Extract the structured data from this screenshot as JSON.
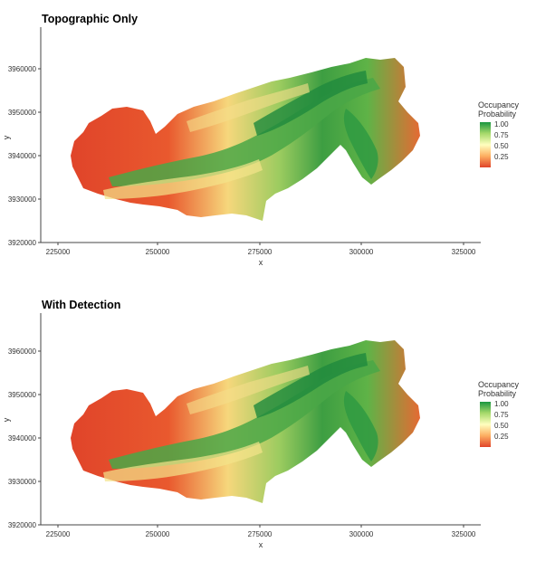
{
  "panels": [
    {
      "title": "Topographic Only",
      "x_axis": {
        "label": "x",
        "ticks": [
          "225000",
          "250000",
          "275000",
          "300000",
          "325000"
        ]
      },
      "y_axis": {
        "label": "y",
        "ticks": [
          "3920000",
          "3930000",
          "3940000",
          "3950000",
          "3960000"
        ]
      },
      "legend": {
        "title_line1": "Occupancy",
        "title_line2": "Probability",
        "ticks": [
          "1.00",
          "0.75",
          "0.50",
          "0.25"
        ]
      }
    },
    {
      "title": "With Detection",
      "x_axis": {
        "label": "x",
        "ticks": [
          "225000",
          "250000",
          "275000",
          "300000",
          "325000"
        ]
      },
      "y_axis": {
        "label": "y",
        "ticks": [
          "3920000",
          "3930000",
          "3940000",
          "3950000",
          "3960000"
        ]
      },
      "legend": {
        "title_line1": "Occupancy",
        "title_line2": "Probability",
        "ticks": [
          "1.00",
          "0.75",
          "0.50",
          "0.25"
        ]
      }
    }
  ],
  "colors": {
    "high": "#1a9641",
    "mid_high": "#a6d96a",
    "mid": "#ffffbf",
    "mid_low": "#fdae61",
    "low": "#e0442a"
  }
}
